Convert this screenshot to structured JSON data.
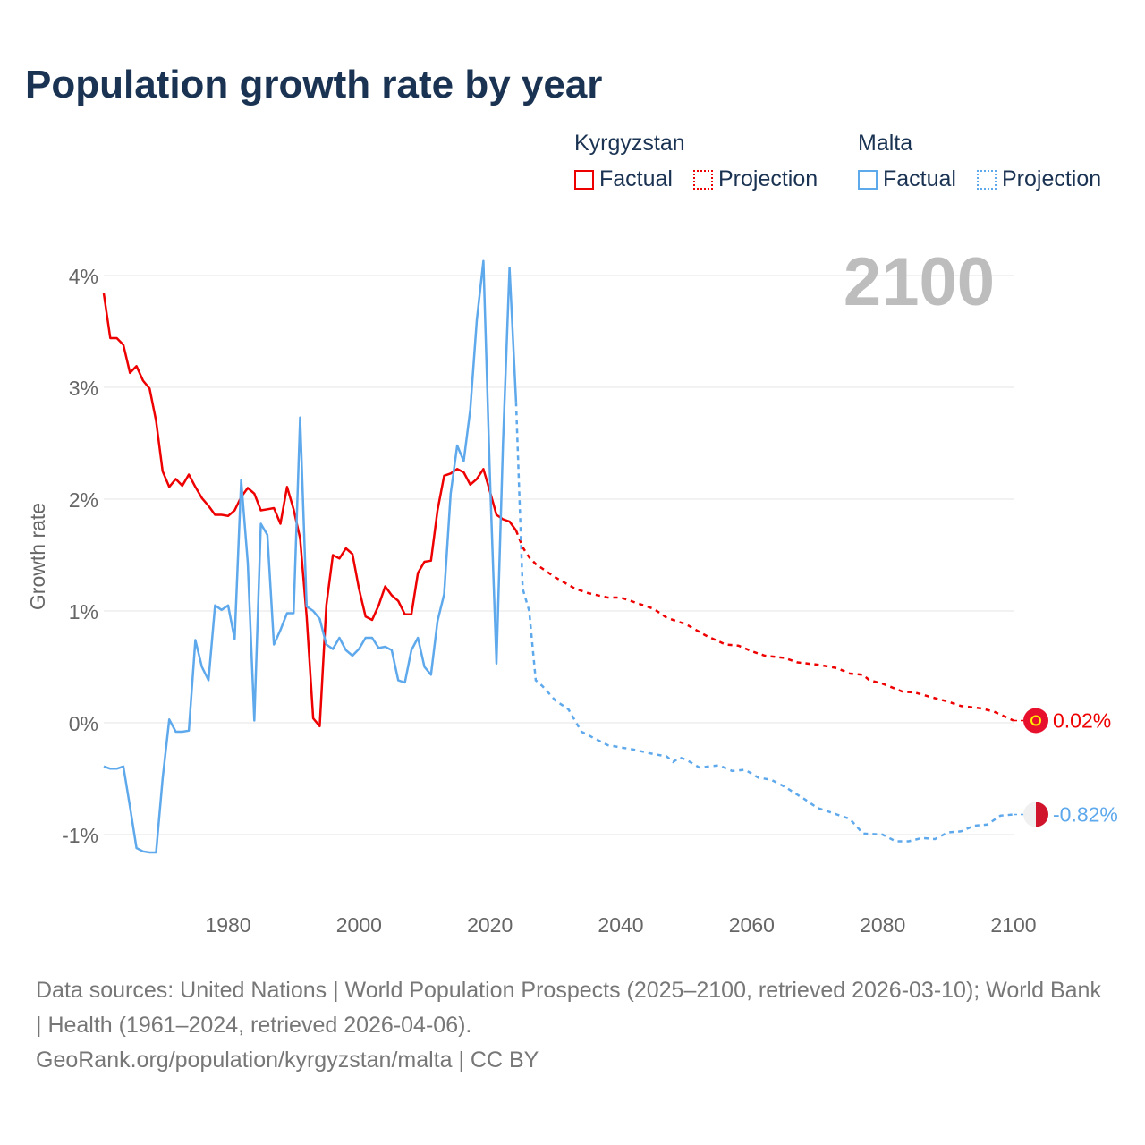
{
  "title": "Population growth rate by year",
  "legend": {
    "groups": [
      {
        "name": "Kyrgyzstan",
        "color": "#ee0000",
        "factual": "Factual",
        "projection": "Projection"
      },
      {
        "name": "Malta",
        "color": "#5ea8ec",
        "factual": "Factual",
        "projection": "Projection"
      }
    ]
  },
  "current_year_label": "2100",
  "chart_data": {
    "type": "line",
    "title": "Population growth rate by year",
    "xlabel": "",
    "ylabel": "Growth rate",
    "xlim": [
      1961,
      2100
    ],
    "ylim": [
      -1.6,
      4.1
    ],
    "x_ticks": [
      1980,
      2000,
      2020,
      2040,
      2060,
      2080,
      2100
    ],
    "x_tick_labels": [
      "1980",
      "2000",
      "2020",
      "2040",
      "2060",
      "2080",
      "2100"
    ],
    "y_ticks": [
      4,
      3,
      2,
      1,
      0,
      -1
    ],
    "y_tick_labels": [
      "4%",
      "3%",
      "2%",
      "1%",
      "0%",
      "-1%"
    ],
    "grid": true,
    "legend_position": "top-right",
    "series": [
      {
        "name": "Kyrgyzstan",
        "color": "#ee0000",
        "end_label": "0.02%",
        "factual": [
          [
            1961,
            3.84
          ],
          [
            1962,
            3.44
          ],
          [
            1963,
            3.44
          ],
          [
            1964,
            3.38
          ],
          [
            1965,
            3.13
          ],
          [
            1966,
            3.19
          ],
          [
            1967,
            3.06
          ],
          [
            1968,
            2.99
          ],
          [
            1969,
            2.7
          ],
          [
            1970,
            2.25
          ],
          [
            1971,
            2.11
          ],
          [
            1972,
            2.18
          ],
          [
            1973,
            2.12
          ],
          [
            1974,
            2.22
          ],
          [
            1975,
            2.11
          ],
          [
            1976,
            2.01
          ],
          [
            1977,
            1.94
          ],
          [
            1978,
            1.86
          ],
          [
            1979,
            1.86
          ],
          [
            1980,
            1.85
          ],
          [
            1981,
            1.9
          ],
          [
            1982,
            2.02
          ],
          [
            1983,
            2.1
          ],
          [
            1984,
            2.05
          ],
          [
            1985,
            1.9
          ],
          [
            1986,
            1.91
          ],
          [
            1987,
            1.92
          ],
          [
            1988,
            1.78
          ],
          [
            1989,
            2.11
          ],
          [
            1990,
            1.91
          ],
          [
            1991,
            1.65
          ],
          [
            1992,
            0.95
          ],
          [
            1993,
            0.04
          ],
          [
            1994,
            -0.03
          ],
          [
            1995,
            1.05
          ],
          [
            1996,
            1.5
          ],
          [
            1997,
            1.47
          ],
          [
            1998,
            1.56
          ],
          [
            1999,
            1.51
          ],
          [
            2000,
            1.2
          ],
          [
            2001,
            0.95
          ],
          [
            2002,
            0.92
          ],
          [
            2003,
            1.05
          ],
          [
            2004,
            1.22
          ],
          [
            2005,
            1.14
          ],
          [
            2006,
            1.09
          ],
          [
            2007,
            0.97
          ],
          [
            2008,
            0.97
          ],
          [
            2009,
            1.34
          ],
          [
            2010,
            1.44
          ],
          [
            2011,
            1.45
          ],
          [
            2012,
            1.9
          ],
          [
            2013,
            2.21
          ],
          [
            2014,
            2.23
          ],
          [
            2015,
            2.27
          ],
          [
            2016,
            2.24
          ],
          [
            2017,
            2.13
          ],
          [
            2018,
            2.18
          ],
          [
            2019,
            2.27
          ],
          [
            2020,
            2.07
          ],
          [
            2021,
            1.86
          ],
          [
            2022,
            1.82
          ],
          [
            2023,
            1.8
          ],
          [
            2024,
            1.72
          ]
        ],
        "projection": [
          [
            2024,
            1.72
          ],
          [
            2025,
            1.57
          ],
          [
            2026,
            1.48
          ],
          [
            2027,
            1.42
          ],
          [
            2028,
            1.38
          ],
          [
            2030,
            1.3
          ],
          [
            2033,
            1.2
          ],
          [
            2035,
            1.16
          ],
          [
            2038,
            1.12
          ],
          [
            2040,
            1.12
          ],
          [
            2042,
            1.08
          ],
          [
            2045,
            1.02
          ],
          [
            2047,
            0.94
          ],
          [
            2050,
            0.88
          ],
          [
            2053,
            0.78
          ],
          [
            2056,
            0.7
          ],
          [
            2058,
            0.69
          ],
          [
            2060,
            0.64
          ],
          [
            2062,
            0.6
          ],
          [
            2065,
            0.58
          ],
          [
            2067,
            0.54
          ],
          [
            2070,
            0.52
          ],
          [
            2073,
            0.49
          ],
          [
            2075,
            0.44
          ],
          [
            2077,
            0.43
          ],
          [
            2078,
            0.38
          ],
          [
            2080,
            0.35
          ],
          [
            2083,
            0.28
          ],
          [
            2085,
            0.27
          ],
          [
            2088,
            0.22
          ],
          [
            2090,
            0.19
          ],
          [
            2092,
            0.15
          ],
          [
            2095,
            0.13
          ],
          [
            2097,
            0.1
          ],
          [
            2100,
            0.02
          ]
        ]
      },
      {
        "name": "Malta",
        "color": "#5ea8ec",
        "end_label": "-0.82%",
        "factual": [
          [
            1961,
            -0.39
          ],
          [
            1962,
            -0.41
          ],
          [
            1963,
            -0.41
          ],
          [
            1964,
            -0.39
          ],
          [
            1965,
            -0.75
          ],
          [
            1966,
            -1.12
          ],
          [
            1967,
            -1.15
          ],
          [
            1968,
            -1.16
          ],
          [
            1969,
            -1.16
          ],
          [
            1970,
            -0.5
          ],
          [
            1971,
            0.03
          ],
          [
            1972,
            -0.08
          ],
          [
            1973,
            -0.08
          ],
          [
            1974,
            -0.07
          ],
          [
            1975,
            0.74
          ],
          [
            1976,
            0.5
          ],
          [
            1977,
            0.38
          ],
          [
            1978,
            1.05
          ],
          [
            1979,
            1.01
          ],
          [
            1980,
            1.05
          ],
          [
            1981,
            0.75
          ],
          [
            1982,
            2.17
          ],
          [
            1983,
            1.43
          ],
          [
            1984,
            0.02
          ],
          [
            1985,
            1.78
          ],
          [
            1986,
            1.68
          ],
          [
            1987,
            0.7
          ],
          [
            1988,
            0.83
          ],
          [
            1989,
            0.98
          ],
          [
            1990,
            0.98
          ],
          [
            1991,
            2.73
          ],
          [
            1992,
            1.04
          ],
          [
            1993,
            1.0
          ],
          [
            1994,
            0.93
          ],
          [
            1995,
            0.7
          ],
          [
            1996,
            0.66
          ],
          [
            1997,
            0.76
          ],
          [
            1998,
            0.65
          ],
          [
            1999,
            0.6
          ],
          [
            2000,
            0.66
          ],
          [
            2001,
            0.76
          ],
          [
            2002,
            0.76
          ],
          [
            2003,
            0.67
          ],
          [
            2004,
            0.68
          ],
          [
            2005,
            0.65
          ],
          [
            2006,
            0.38
          ],
          [
            2007,
            0.36
          ],
          [
            2008,
            0.65
          ],
          [
            2009,
            0.76
          ],
          [
            2010,
            0.5
          ],
          [
            2011,
            0.43
          ],
          [
            2012,
            0.91
          ],
          [
            2013,
            1.15
          ],
          [
            2014,
            2.05
          ],
          [
            2015,
            2.48
          ],
          [
            2016,
            2.34
          ],
          [
            2017,
            2.8
          ],
          [
            2018,
            3.6
          ],
          [
            2019,
            4.13
          ],
          [
            2020,
            2.2
          ],
          [
            2021,
            0.53
          ],
          [
            2022,
            2.5
          ],
          [
            2023,
            4.07
          ],
          [
            2024,
            2.87
          ]
        ],
        "projection": [
          [
            2024,
            2.87
          ],
          [
            2025,
            1.2
          ],
          [
            2026,
            1.0
          ],
          [
            2027,
            0.38
          ],
          [
            2028,
            0.33
          ],
          [
            2030,
            0.2
          ],
          [
            2032,
            0.12
          ],
          [
            2034,
            -0.08
          ],
          [
            2036,
            -0.14
          ],
          [
            2038,
            -0.2
          ],
          [
            2040,
            -0.22
          ],
          [
            2042,
            -0.24
          ],
          [
            2045,
            -0.28
          ],
          [
            2047,
            -0.3
          ],
          [
            2048,
            -0.35
          ],
          [
            2049,
            -0.31
          ],
          [
            2050,
            -0.33
          ],
          [
            2052,
            -0.4
          ],
          [
            2055,
            -0.38
          ],
          [
            2057,
            -0.43
          ],
          [
            2059,
            -0.42
          ],
          [
            2061,
            -0.49
          ],
          [
            2063,
            -0.51
          ],
          [
            2065,
            -0.57
          ],
          [
            2068,
            -0.68
          ],
          [
            2070,
            -0.76
          ],
          [
            2073,
            -0.82
          ],
          [
            2075,
            -0.86
          ],
          [
            2077,
            -0.99
          ],
          [
            2080,
            -1.0
          ],
          [
            2082,
            -1.06
          ],
          [
            2084,
            -1.06
          ],
          [
            2086,
            -1.03
          ],
          [
            2088,
            -1.04
          ],
          [
            2090,
            -0.98
          ],
          [
            2092,
            -0.97
          ],
          [
            2094,
            -0.92
          ],
          [
            2096,
            -0.91
          ],
          [
            2098,
            -0.83
          ],
          [
            2100,
            -0.82
          ]
        ]
      }
    ]
  },
  "footer": {
    "sources": "Data sources: United Nations | World Population Prospects (2025–2100, retrieved 2026-03-10); World Bank | Health (1961–2024, retrieved 2026-04-06).",
    "credit": "GeoRank.org/population/kyrgyzstan/malta | CC BY"
  }
}
